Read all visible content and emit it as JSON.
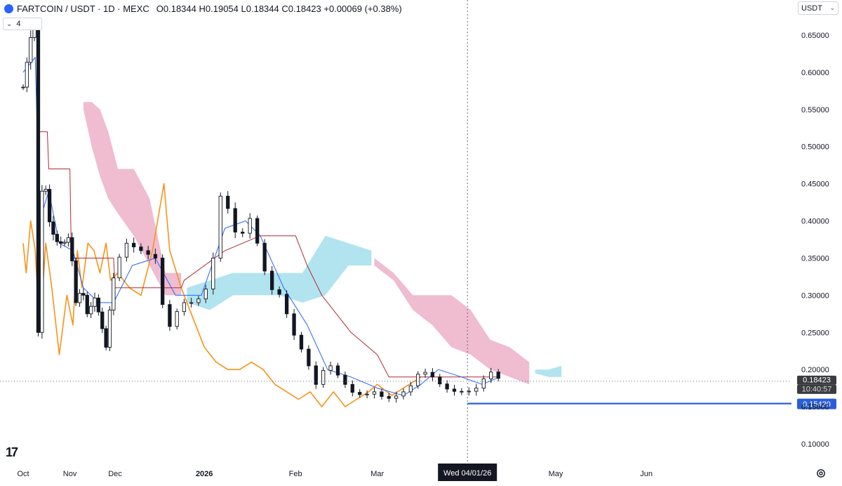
{
  "header": {
    "symbol": "FARTCOIN / USDT · 1D · MEXC",
    "open": "O0.18344",
    "high": "H0.19054",
    "low": "L0.18344",
    "close": "C0.18423",
    "change": "+0.00069 (+0.38%)"
  },
  "indicator_chip": {
    "count": "4"
  },
  "currency_button": {
    "label": "USDT"
  },
  "current_price_label": "0.18423",
  "countdown_label": "10:40:57",
  "support_line_label": "0.15420",
  "crosshair_date_label": "Wed 04/01/26",
  "colors": {
    "up": "#ffffff",
    "down": "#131722",
    "kumo_bear": "#efbcd0",
    "kumo_bull": "#b2e4ef",
    "tenkan": "#2962ff",
    "kijun": "#b22833",
    "chikou": "#f7931a",
    "support": "#2b5fd9",
    "brand": "#2962ff"
  },
  "chart_data": {
    "type": "candlestick",
    "title": "FARTCOIN / USDT · 1D · MEXC",
    "indicators": [
      "Ichimoku Cloud"
    ],
    "y_axis_ticks": [
      "0.65000",
      "0.60000",
      "0.55000",
      "0.50000",
      "0.45000",
      "0.40000",
      "0.35000",
      "0.30000",
      "0.25000",
      "0.20000",
      "0.15000",
      "0.10000"
    ],
    "y_range": [
      0.075,
      0.69
    ],
    "x_axis_ticks": [
      "Oct",
      "Nov",
      "Dec",
      "2026",
      "Feb",
      "Mar",
      "Apr",
      "May",
      "Jun"
    ],
    "x_tick_dates": [
      "2025-10-01",
      "2025-11-01",
      "2025-12-01",
      "2026-01-01",
      "2026-02-01",
      "2026-03-01",
      "2026-04-01",
      "2026-05-01",
      "2026-06-01"
    ],
    "x_range": [
      "2025-10-01",
      "2026-06-01"
    ],
    "price_series_points": [
      [
        "2025-10-01",
        0.58
      ],
      [
        "2025-10-04",
        0.62
      ],
      [
        "2025-10-07",
        0.66
      ],
      [
        "2025-10-09",
        0.67
      ],
      [
        "2025-10-10",
        0.63
      ],
      [
        "2025-10-11",
        0.25
      ],
      [
        "2025-10-12",
        0.42
      ],
      [
        "2025-10-15",
        0.46
      ],
      [
        "2025-10-19",
        0.39
      ],
      [
        "2025-10-24",
        0.37
      ],
      [
        "2025-10-28",
        0.37
      ],
      [
        "2025-11-01",
        0.38
      ],
      [
        "2025-11-05",
        0.29
      ],
      [
        "2025-11-09",
        0.31
      ],
      [
        "2025-11-13",
        0.27
      ],
      [
        "2025-11-17",
        0.3
      ],
      [
        "2025-11-21",
        0.27
      ],
      [
        "2025-11-25",
        0.23
      ],
      [
        "2025-11-28",
        0.29
      ],
      [
        "2025-12-01",
        0.34
      ],
      [
        "2025-12-05",
        0.37
      ],
      [
        "2025-12-10",
        0.36
      ],
      [
        "2025-12-15",
        0.35
      ],
      [
        "2025-12-19",
        0.25
      ],
      [
        "2025-12-24",
        0.29
      ],
      [
        "2025-12-28",
        0.29
      ],
      [
        "2026-01-01",
        0.3
      ],
      [
        "2026-01-04",
        0.35
      ],
      [
        "2026-01-07",
        0.45
      ],
      [
        "2026-01-10",
        0.4
      ],
      [
        "2026-01-13",
        0.37
      ],
      [
        "2026-01-16",
        0.41
      ],
      [
        "2026-01-19",
        0.37
      ],
      [
        "2026-01-23",
        0.31
      ],
      [
        "2026-01-27",
        0.3
      ],
      [
        "2026-01-31",
        0.25
      ],
      [
        "2026-02-04",
        0.22
      ],
      [
        "2026-02-08",
        0.18
      ],
      [
        "2026-02-12",
        0.21
      ],
      [
        "2026-02-16",
        0.19
      ],
      [
        "2026-02-20",
        0.17
      ],
      [
        "2026-02-24",
        0.165
      ],
      [
        "2026-02-28",
        0.17
      ],
      [
        "2026-03-04",
        0.16
      ],
      [
        "2026-03-08",
        0.165
      ],
      [
        "2026-03-12",
        0.175
      ],
      [
        "2026-03-16",
        0.2
      ],
      [
        "2026-03-20",
        0.19
      ],
      [
        "2026-03-24",
        0.175
      ],
      [
        "2026-03-28",
        0.17
      ],
      [
        "2026-04-01",
        0.17
      ],
      [
        "2026-04-04",
        0.175
      ],
      [
        "2026-04-07",
        0.19
      ],
      [
        "2026-04-10",
        0.2
      ],
      [
        "2026-04-12",
        0.18423
      ]
    ],
    "tenkan_sen": [
      [
        "2025-10-01",
        0.6
      ],
      [
        "2025-10-09",
        0.62
      ],
      [
        "2025-10-12",
        0.4
      ],
      [
        "2025-10-18",
        0.44
      ],
      [
        "2025-10-25",
        0.37
      ],
      [
        "2025-11-03",
        0.36
      ],
      [
        "2025-11-10",
        0.31
      ],
      [
        "2025-11-20",
        0.29
      ],
      [
        "2025-11-30",
        0.29
      ],
      [
        "2025-12-07",
        0.34
      ],
      [
        "2025-12-15",
        0.35
      ],
      [
        "2025-12-22",
        0.3
      ],
      [
        "2025-12-31",
        0.3
      ],
      [
        "2026-01-08",
        0.39
      ],
      [
        "2026-01-15",
        0.4
      ],
      [
        "2026-01-20",
        0.38
      ],
      [
        "2026-01-28",
        0.31
      ],
      [
        "2026-02-05",
        0.26
      ],
      [
        "2026-02-12",
        0.2
      ],
      [
        "2026-02-20",
        0.19
      ],
      [
        "2026-03-01",
        0.175
      ],
      [
        "2026-03-10",
        0.165
      ],
      [
        "2026-03-16",
        0.18
      ],
      [
        "2026-03-22",
        0.2
      ],
      [
        "2026-03-30",
        0.19
      ],
      [
        "2026-04-06",
        0.18
      ],
      [
        "2026-04-12",
        0.19
      ]
    ],
    "kijun_sen": [
      [
        "2025-10-11",
        0.52
      ],
      [
        "2025-10-17",
        0.52
      ],
      [
        "2025-10-18",
        0.47
      ],
      [
        "2025-11-01",
        0.47
      ],
      [
        "2025-11-02",
        0.35
      ],
      [
        "2025-11-30",
        0.35
      ],
      [
        "2025-12-01",
        0.31
      ],
      [
        "2025-12-24",
        0.31
      ],
      [
        "2025-12-25",
        0.32
      ],
      [
        "2026-01-08",
        0.36
      ],
      [
        "2026-01-20",
        0.38
      ],
      [
        "2026-02-01",
        0.38
      ],
      [
        "2026-02-05",
        0.34
      ],
      [
        "2026-02-10",
        0.3
      ],
      [
        "2026-02-20",
        0.25
      ],
      [
        "2026-03-01",
        0.22
      ],
      [
        "2026-03-05",
        0.19
      ],
      [
        "2026-03-20",
        0.19
      ],
      [
        "2026-04-01",
        0.19
      ],
      [
        "2026-04-12",
        0.19
      ]
    ],
    "chikou_span": [
      [
        "2025-10-01",
        0.37
      ],
      [
        "2025-10-03",
        0.33
      ],
      [
        "2025-10-06",
        0.4
      ],
      [
        "2025-10-09",
        0.36
      ],
      [
        "2025-10-12",
        0.25
      ],
      [
        "2025-10-16",
        0.37
      ],
      [
        "2025-10-20",
        0.31
      ],
      [
        "2025-10-25",
        0.22
      ],
      [
        "2025-10-30",
        0.3
      ],
      [
        "2025-11-03",
        0.26
      ],
      [
        "2025-11-06",
        0.36
      ],
      [
        "2025-11-09",
        0.31
      ],
      [
        "2025-11-13",
        0.37
      ],
      [
        "2025-11-17",
        0.36
      ],
      [
        "2025-11-21",
        0.33
      ],
      [
        "2025-11-25",
        0.37
      ],
      [
        "2025-11-28",
        0.32
      ],
      [
        "2025-12-02",
        0.33
      ],
      [
        "2025-12-06",
        0.31
      ],
      [
        "2025-12-10",
        0.3
      ],
      [
        "2025-12-14",
        0.36
      ],
      [
        "2025-12-18",
        0.45
      ],
      [
        "2025-12-20",
        0.36
      ],
      [
        "2025-12-24",
        0.31
      ],
      [
        "2025-12-28",
        0.27
      ],
      [
        "2026-01-01",
        0.23
      ],
      [
        "2026-01-05",
        0.21
      ],
      [
        "2026-01-09",
        0.2
      ],
      [
        "2026-01-13",
        0.2
      ],
      [
        "2026-01-17",
        0.21
      ],
      [
        "2026-01-21",
        0.2
      ],
      [
        "2026-01-25",
        0.18
      ],
      [
        "2026-01-29",
        0.17
      ],
      [
        "2026-02-02",
        0.16
      ],
      [
        "2026-02-06",
        0.17
      ],
      [
        "2026-02-10",
        0.15
      ],
      [
        "2026-02-14",
        0.17
      ],
      [
        "2026-02-18",
        0.15
      ],
      [
        "2026-02-22",
        0.16
      ],
      [
        "2026-02-26",
        0.17
      ],
      [
        "2026-03-01",
        0.18
      ],
      [
        "2026-03-06",
        0.165
      ],
      [
        "2026-03-12",
        0.18
      ],
      [
        "2026-03-16",
        0.19
      ]
    ],
    "kumo_bearish": [
      {
        "start": "2025-11-10",
        "end": "2025-12-24",
        "upper": [
          0.56,
          0.56,
          0.55,
          0.52,
          0.47,
          0.47,
          0.43,
          0.33,
          0.33
        ],
        "lower": [
          0.55,
          0.5,
          0.46,
          0.43,
          0.41,
          0.38,
          0.34,
          0.3,
          0.3
        ]
      },
      {
        "start": "2026-02-28",
        "end": "2026-04-22",
        "upper": [
          0.35,
          0.33,
          0.3,
          0.3,
          0.3,
          0.28,
          0.24,
          0.23,
          0.21
        ],
        "lower": [
          0.34,
          0.32,
          0.28,
          0.26,
          0.23,
          0.22,
          0.2,
          0.19,
          0.18
        ]
      }
    ],
    "kumo_bullish": [
      {
        "start": "2025-12-26",
        "end": "2026-02-27",
        "upper": [
          0.31,
          0.32,
          0.33,
          0.33,
          0.33,
          0.33,
          0.38,
          0.37,
          0.36
        ],
        "lower": [
          0.29,
          0.28,
          0.3,
          0.3,
          0.3,
          0.29,
          0.3,
          0.34,
          0.34
        ]
      },
      {
        "start": "2026-04-24",
        "end": "2026-05-03",
        "upper": [
          0.2,
          0.2,
          0.205
        ],
        "lower": [
          0.195,
          0.19,
          0.19
        ]
      }
    ],
    "current_price": 0.18423,
    "support_level": 0.1542,
    "crosshair_date": "2026-04-01",
    "grid": false,
    "legend": "none"
  }
}
